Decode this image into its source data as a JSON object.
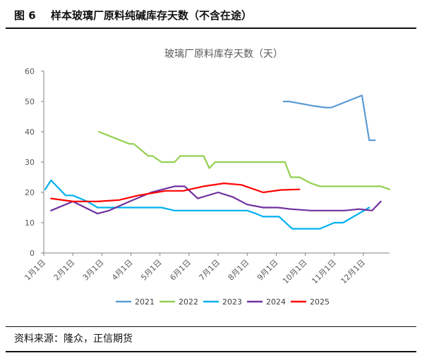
{
  "header": {
    "figure_number": "图 6",
    "title": "样本玻璃厂原料纯碱库存天数（不含在途）"
  },
  "source": {
    "label": "资料来源：",
    "text": "隆众，正信期货"
  },
  "chart_data": {
    "type": "line",
    "title": "玻璃厂原料库存天数（天）",
    "xlabel": "",
    "ylabel": "",
    "ylim": [
      0,
      60
    ],
    "yticks": [
      0,
      10,
      20,
      30,
      40,
      50,
      60
    ],
    "xlim": [
      1,
      12.9
    ],
    "x_ticks": [
      {
        "x": 1,
        "label": "1月1日"
      },
      {
        "x": 2,
        "label": "2月1日"
      },
      {
        "x": 3,
        "label": "3月1日"
      },
      {
        "x": 4,
        "label": "4月1日"
      },
      {
        "x": 5,
        "label": "5月1日"
      },
      {
        "x": 6,
        "label": "6月1日"
      },
      {
        "x": 7,
        "label": "7月1日"
      },
      {
        "x": 8,
        "label": "8月1日"
      },
      {
        "x": 9,
        "label": "9月1日"
      },
      {
        "x": 10,
        "label": "10月1日"
      },
      {
        "x": 11,
        "label": "11月1日"
      },
      {
        "x": 12,
        "label": "12月1日"
      }
    ],
    "grid": false,
    "legend": "bottom",
    "series": [
      {
        "name": "2021",
        "color": "#5B9BD5",
        "x": [
          9.25,
          9.45,
          10.3,
          10.7,
          10.9,
          11.95,
          12.2,
          12.4
        ],
        "values": [
          50,
          50,
          48.5,
          48,
          48,
          52,
          37.2,
          37.2
        ]
      },
      {
        "name": "2022",
        "color": "#92D050",
        "x": [
          2.9,
          3.95,
          4.1,
          4.6,
          4.75,
          5.05,
          5.5,
          5.7,
          6.5,
          6.7,
          6.9,
          7.3,
          9.3,
          9.5,
          9.8,
          10.2,
          10.5,
          12.6,
          12.9
        ],
        "values": [
          40,
          36,
          36,
          32,
          32,
          30,
          30,
          32,
          32,
          28,
          30,
          30,
          30,
          25,
          25,
          23,
          22,
          22,
          21
        ]
      },
      {
        "name": "2023",
        "color": "#00B0F0",
        "x": [
          1.05,
          1.25,
          1.75,
          2.0,
          2.5,
          2.85,
          3.2,
          3.6,
          5.05,
          5.5,
          7.3,
          8.0,
          8.3,
          8.55,
          9.1,
          9.55,
          10.5,
          11.0,
          11.3,
          12.2
        ],
        "values": [
          21,
          24,
          19,
          19,
          17,
          15,
          15,
          15,
          15,
          14,
          14,
          14,
          13,
          12,
          12,
          8,
          8,
          10,
          10,
          15
        ]
      },
      {
        "name": "2024",
        "color": "#7030A0",
        "x": [
          1.25,
          2.0,
          2.85,
          3.25,
          3.95,
          4.7,
          5.5,
          5.85,
          6.3,
          7.0,
          7.5,
          8.0,
          8.55,
          9.05,
          9.5,
          10.2,
          10.85,
          11.35,
          11.85,
          12.3,
          12.6
        ],
        "values": [
          14,
          17,
          13,
          14,
          17,
          20,
          22,
          22,
          18,
          20,
          18.5,
          16,
          15,
          15,
          14.5,
          14,
          14,
          14,
          14.5,
          14,
          17
        ]
      },
      {
        "name": "2025",
        "color": "#FF0000",
        "x": [
          1.25,
          2.0,
          2.85,
          3.6,
          4.25,
          5.2,
          5.8,
          6.5,
          7.2,
          7.8,
          8.55,
          9.15,
          9.8
        ],
        "values": [
          18,
          17,
          17,
          17.5,
          19,
          20.5,
          20.5,
          22,
          23,
          22.5,
          20,
          20.8,
          21
        ]
      }
    ]
  }
}
